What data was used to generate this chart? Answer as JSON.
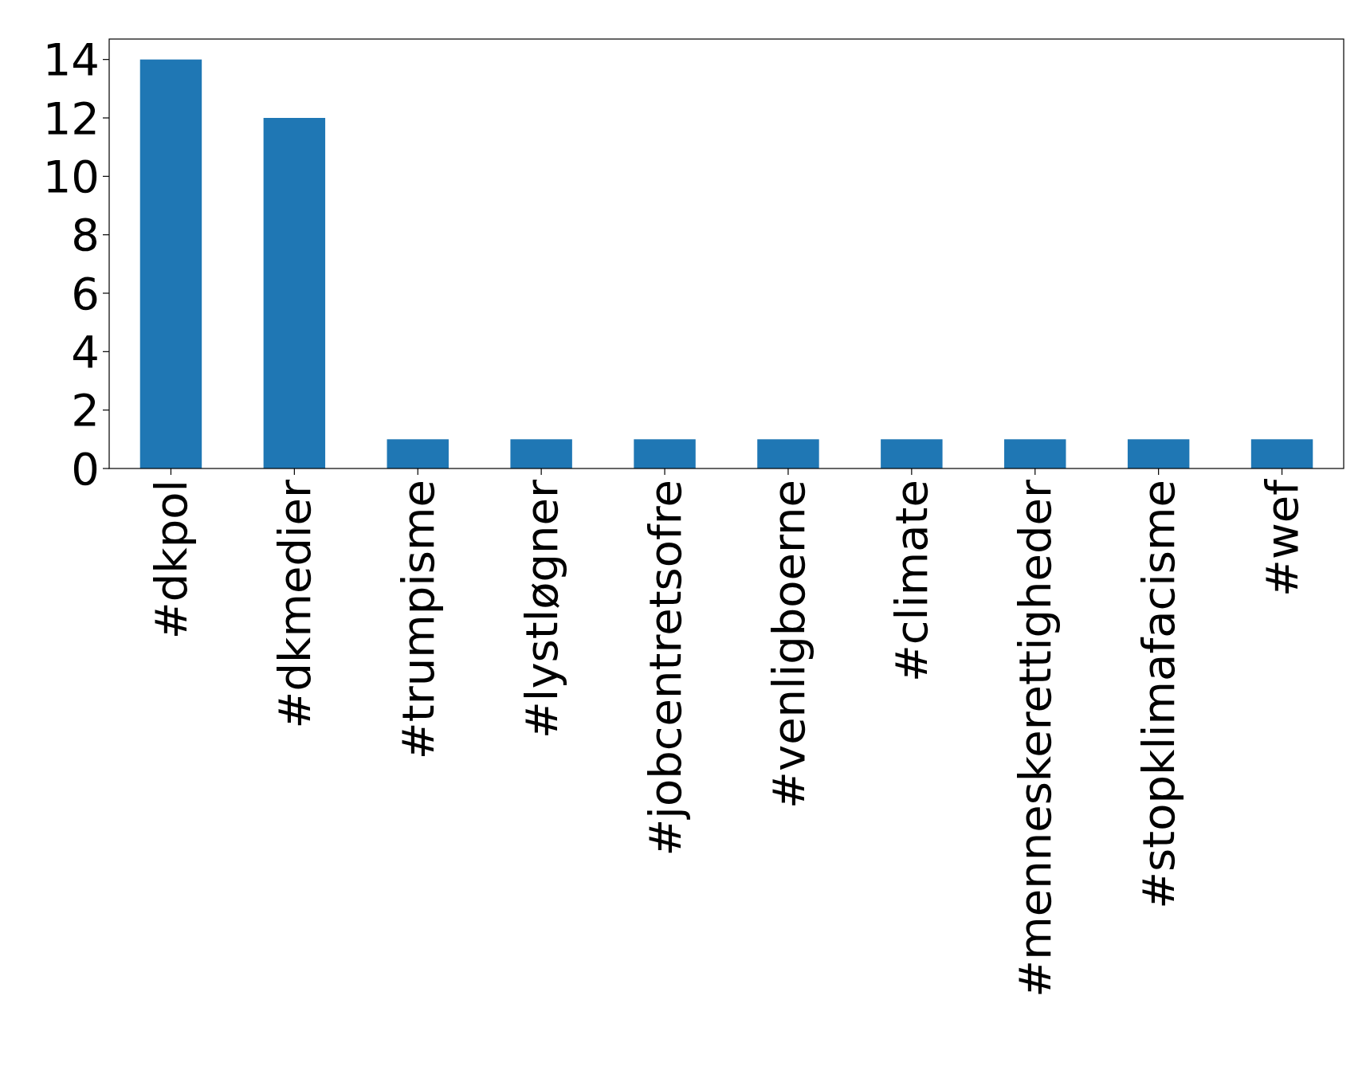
{
  "chart_data": {
    "type": "bar",
    "categories": [
      "#dkpol",
      "#dkmedier",
      "#trumpisme",
      "#lystløgner",
      "#jobcentretsofre",
      "#venligboerne",
      "#climate",
      "#menneskerettigheder",
      "#stopklimafacisme",
      "#wef"
    ],
    "values": [
      14,
      12,
      1,
      1,
      1,
      1,
      1,
      1,
      1,
      1
    ],
    "color": "#1f77b4",
    "ylim": [
      0,
      14.7
    ],
    "yticks": [
      0,
      2,
      4,
      6,
      8,
      10,
      12,
      14
    ]
  }
}
